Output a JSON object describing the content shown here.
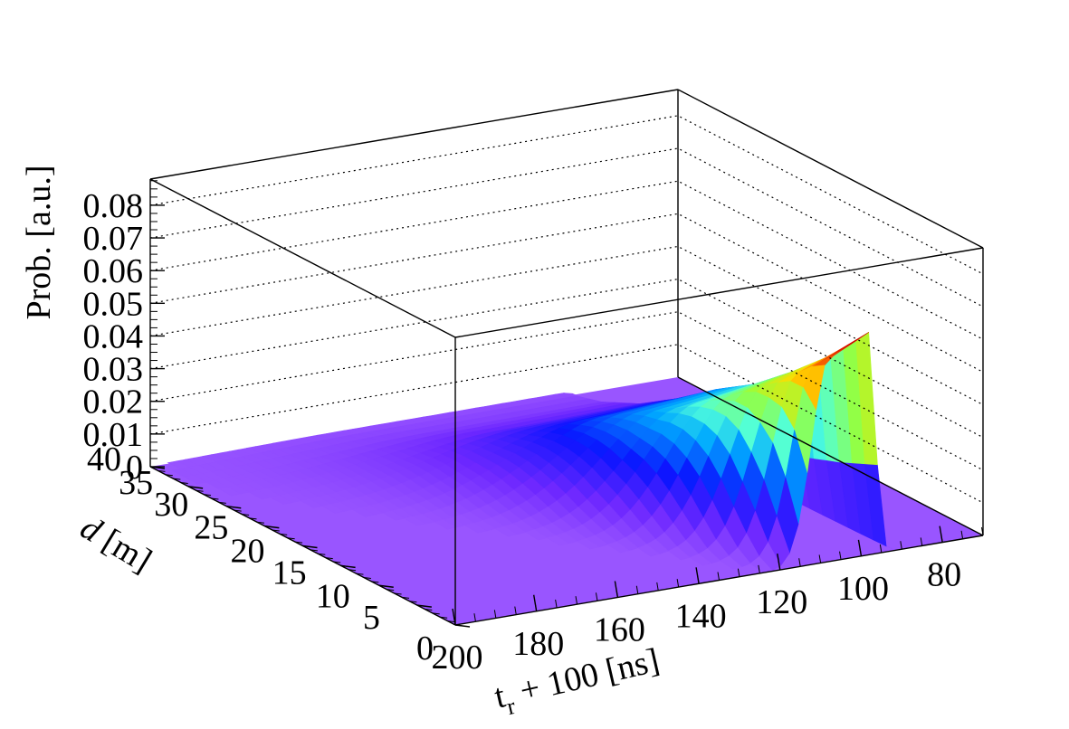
{
  "chart_data": {
    "type": "surface3d",
    "title": "",
    "ylabel": "Prob. [a.u.]",
    "xlabel_main": "t",
    "xlabel_sub": "r",
    "xlabel_rest": " + 100 [ns]",
    "dlabel": "d [m]",
    "x_ticks": [
      "200",
      "180",
      "160",
      "140",
      "120",
      "100",
      "80"
    ],
    "x_tick_values": [
      200,
      180,
      160,
      140,
      120,
      100,
      80
    ],
    "d_ticks": [
      "0",
      "5",
      "10",
      "15",
      "20",
      "25",
      "30",
      "35",
      "40"
    ],
    "d_tick_values": [
      0,
      5,
      10,
      15,
      20,
      25,
      30,
      35,
      40
    ],
    "z_ticks": [
      "0",
      "0.01",
      "0.02",
      "0.03",
      "0.04",
      "0.05",
      "0.06",
      "0.07",
      "0.08"
    ],
    "z_tick_values": [
      0,
      0.01,
      0.02,
      0.03,
      0.04,
      0.05,
      0.06,
      0.07,
      0.08
    ],
    "x_range": [
      200,
      70
    ],
    "d_range": [
      0,
      40
    ],
    "z_range": [
      0,
      0.088
    ],
    "grid": "dotted z-gridlines on back walls",
    "colormap": "rainbow (violet to red)",
    "base_color": "#9955ff",
    "surface_points": [
      {
        "d": 0.0,
        "t_peak": 108,
        "peak": 0.062
      },
      {
        "d": 5.0,
        "t_peak": 110,
        "peak": 0.05
      },
      {
        "d": 10.0,
        "t_peak": 113,
        "peak": 0.04
      },
      {
        "d": 15.0,
        "t_peak": 116,
        "peak": 0.031
      },
      {
        "d": 20.0,
        "t_peak": 120,
        "peak": 0.024
      },
      {
        "d": 25.0,
        "t_peak": 125,
        "peak": 0.016
      },
      {
        "d": 30.0,
        "t_peak": 132,
        "peak": 0.009
      },
      {
        "d": 35.0,
        "t_peak": 140,
        "peak": 0.004
      },
      {
        "d": 40.0,
        "t_peak": 150,
        "peak": 0.001
      }
    ]
  }
}
